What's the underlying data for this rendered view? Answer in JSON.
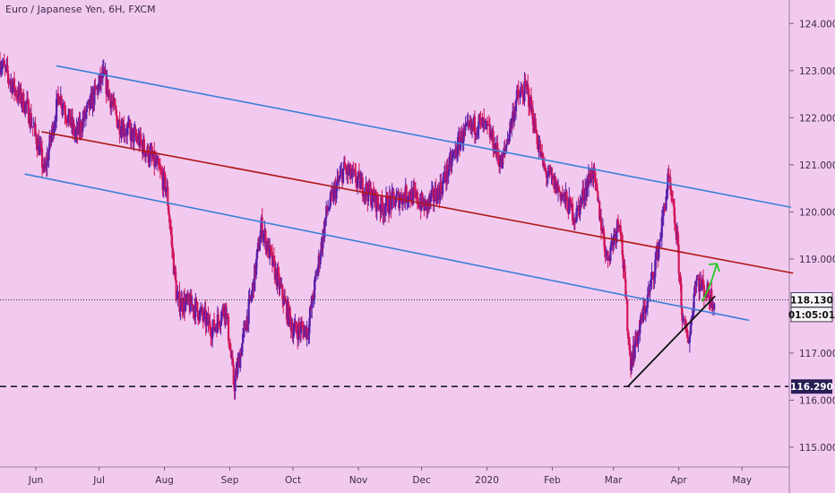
{
  "header": {
    "title": "Euro / Japanese Yen, 6H, FXCM"
  },
  "colors": {
    "background": "#f2caf0",
    "up_candle": "#5a1ea8",
    "down_candle": "#d2145a",
    "channel": "#3b7fd6",
    "midline": "#b01717",
    "support_line": "#111111",
    "arrow": "#22cc22",
    "price_tag": "#2a1f55"
  },
  "chart_data": {
    "type": "candlestick",
    "title": "Euro / Japanese Yen, 6H, FXCM",
    "xlabel": "",
    "ylabel": "",
    "ylim": [
      114.6,
      124.5
    ],
    "y_ticks": [
      "124.000",
      "123.000",
      "122.000",
      "121.000",
      "120.000",
      "119.000",
      "117.000",
      "116.000",
      "115.000"
    ],
    "x_ticks": [
      "Jun",
      "Jul",
      "Aug",
      "Sep",
      "Oct",
      "Nov",
      "Dec",
      "2020",
      "Feb",
      "Mar",
      "Apr",
      "May"
    ],
    "x_tick_dates": [
      "2019-06-01",
      "2019-07-01",
      "2019-08-01",
      "2019-09-01",
      "2019-10-01",
      "2019-11-01",
      "2019-12-01",
      "2020-01-01",
      "2020-02-01",
      "2020-03-01",
      "2020-04-01",
      "2020-05-01"
    ],
    "date_range": [
      "2019-05-15",
      "2020-05-23"
    ],
    "price_path": [
      {
        "date": "2019-05-15",
        "price": 123.2
      },
      {
        "date": "2019-05-22",
        "price": 122.6
      },
      {
        "date": "2019-05-28",
        "price": 122.2
      },
      {
        "date": "2019-06-03",
        "price": 121.3
      },
      {
        "date": "2019-06-05",
        "price": 120.8
      },
      {
        "date": "2019-06-12",
        "price": 122.5
      },
      {
        "date": "2019-06-20",
        "price": 121.6
      },
      {
        "date": "2019-06-28",
        "price": 122.4
      },
      {
        "date": "2019-07-03",
        "price": 122.9
      },
      {
        "date": "2019-07-10",
        "price": 121.9
      },
      {
        "date": "2019-07-20",
        "price": 121.5
      },
      {
        "date": "2019-07-28",
        "price": 121.0
      },
      {
        "date": "2019-08-02",
        "price": 120.5
      },
      {
        "date": "2019-08-07",
        "price": 118.1
      },
      {
        "date": "2019-08-15",
        "price": 118.0
      },
      {
        "date": "2019-08-24",
        "price": 117.5
      },
      {
        "date": "2019-08-30",
        "price": 118.0
      },
      {
        "date": "2019-09-03",
        "price": 116.3
      },
      {
        "date": "2019-09-12",
        "price": 118.4
      },
      {
        "date": "2019-09-16",
        "price": 119.7
      },
      {
        "date": "2019-09-24",
        "price": 118.5
      },
      {
        "date": "2019-10-01",
        "price": 117.5
      },
      {
        "date": "2019-10-08",
        "price": 117.5
      },
      {
        "date": "2019-10-17",
        "price": 120.0
      },
      {
        "date": "2019-10-25",
        "price": 120.9
      },
      {
        "date": "2019-11-02",
        "price": 120.6
      },
      {
        "date": "2019-11-12",
        "price": 120.1
      },
      {
        "date": "2019-11-25",
        "price": 120.4
      },
      {
        "date": "2019-12-03",
        "price": 120.1
      },
      {
        "date": "2019-12-10",
        "price": 120.5
      },
      {
        "date": "2019-12-20",
        "price": 121.6
      },
      {
        "date": "2019-12-28",
        "price": 121.9
      },
      {
        "date": "2020-01-02",
        "price": 121.7
      },
      {
        "date": "2020-01-08",
        "price": 121.0
      },
      {
        "date": "2020-01-15",
        "price": 122.4
      },
      {
        "date": "2020-01-20",
        "price": 122.6
      },
      {
        "date": "2020-01-28",
        "price": 120.9
      },
      {
        "date": "2020-02-05",
        "price": 120.4
      },
      {
        "date": "2020-02-12",
        "price": 119.9
      },
      {
        "date": "2020-02-20",
        "price": 120.9
      },
      {
        "date": "2020-02-27",
        "price": 119.0
      },
      {
        "date": "2020-03-04",
        "price": 119.9
      },
      {
        "date": "2020-03-09",
        "price": 116.8
      },
      {
        "date": "2020-03-12",
        "price": 117.3
      },
      {
        "date": "2020-03-18",
        "price": 118.3
      },
      {
        "date": "2020-03-23",
        "price": 119.4
      },
      {
        "date": "2020-03-27",
        "price": 120.7
      },
      {
        "date": "2020-03-31",
        "price": 119.5
      },
      {
        "date": "2020-04-03",
        "price": 117.6
      },
      {
        "date": "2020-04-06",
        "price": 117.3
      },
      {
        "date": "2020-04-09",
        "price": 118.6
      },
      {
        "date": "2020-04-14",
        "price": 118.3
      },
      {
        "date": "2020-04-18",
        "price": 118.1
      }
    ],
    "drawings": {
      "channel_upper": [
        {
          "date": "2019-06-11",
          "price": 123.1
        },
        {
          "date": "2020-05-24",
          "price": 120.1
        }
      ],
      "channel_lower": [
        {
          "date": "2019-05-27",
          "price": 120.8
        },
        {
          "date": "2020-05-04",
          "price": 117.7
        }
      ],
      "channel_mid": [
        {
          "date": "2019-06-04",
          "price": 121.7
        },
        {
          "date": "2020-05-25",
          "price": 118.7
        }
      ],
      "support_trendline": [
        {
          "date": "2020-03-08",
          "price": 116.3
        },
        {
          "date": "2020-04-18",
          "price": 118.2
        }
      ],
      "green_arrow": [
        {
          "date": "2020-04-12",
          "price": 118.1
        },
        {
          "date": "2020-04-19",
          "price": 118.9
        }
      ]
    },
    "horizontal_lines": [
      {
        "label": "116.290",
        "price": 116.29,
        "style": "dashed"
      },
      {
        "label": "118.130",
        "price": 118.13,
        "style": "dotted"
      }
    ],
    "price_tags": [
      {
        "label": "118.130",
        "price": 118.13,
        "style": "light"
      },
      {
        "label": "01:05:01",
        "price": 117.82,
        "style": "light"
      },
      {
        "label": "116.290",
        "price": 116.29,
        "style": "dark"
      }
    ]
  }
}
